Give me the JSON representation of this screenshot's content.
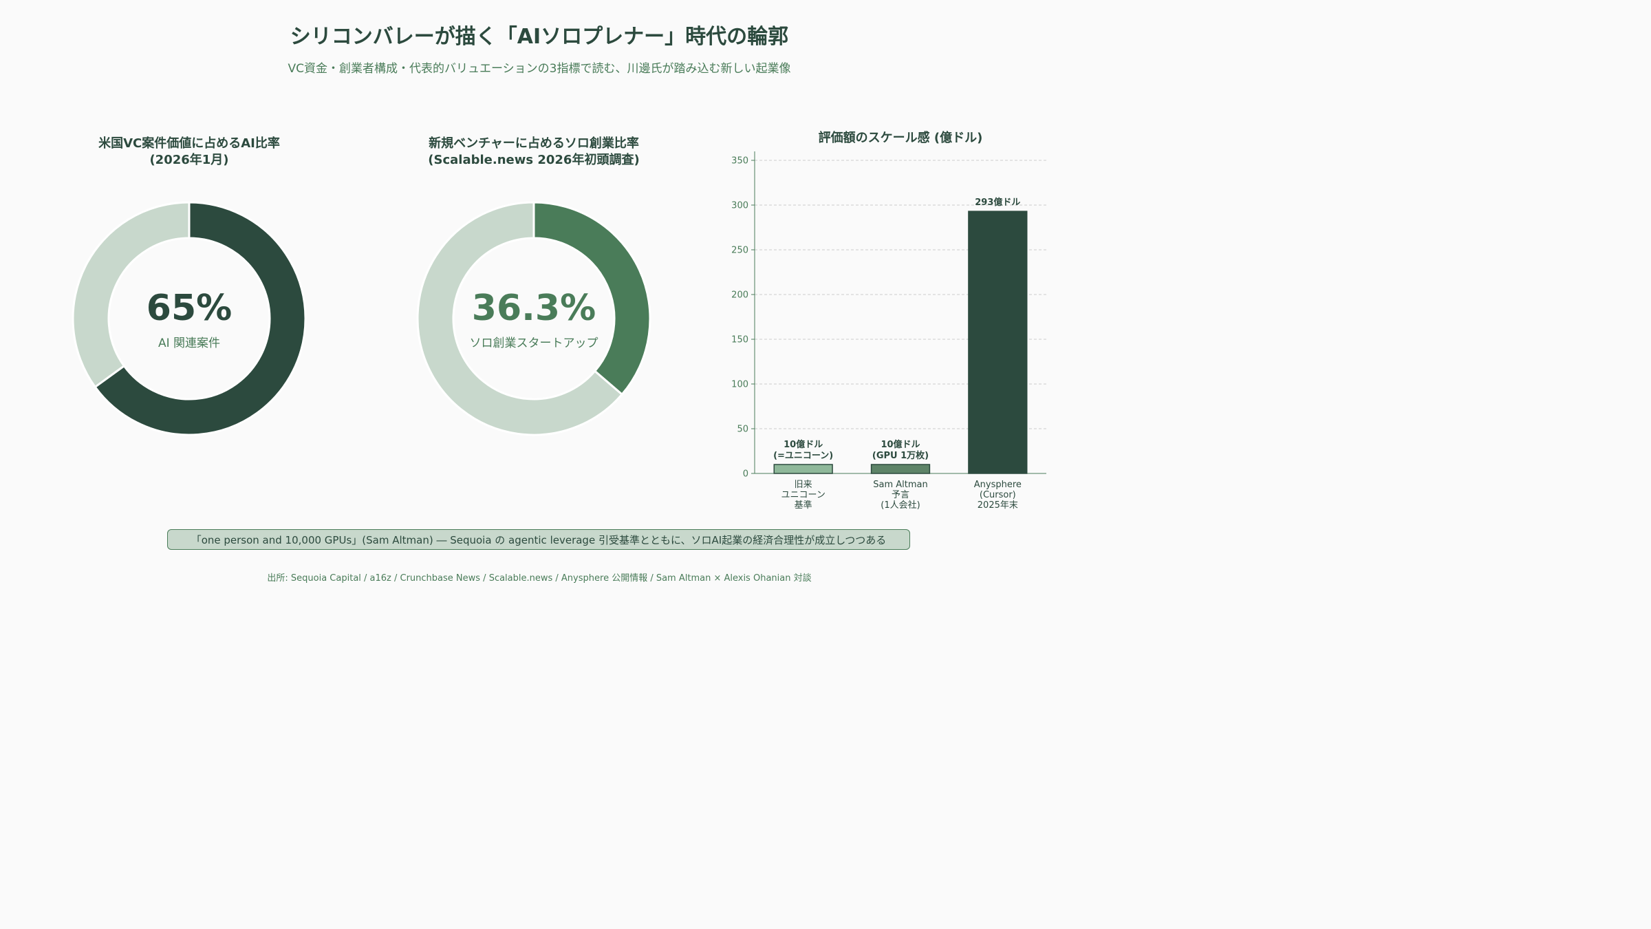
{
  "title": "シリコンバレーが描く「AIソロプレナー」時代の輪郭",
  "subtitle": "VC資金・創業者構成・代表的バリュエーションの3指標で読む、川邊氏が踏み込む新しい起業像",
  "colors": {
    "dark": "#2c4a3e",
    "mid": "#4a7c59",
    "light": "#c8d8cc",
    "bar1": "#8fb89a",
    "bar2": "#5e8468"
  },
  "chart_data": [
    {
      "type": "pie",
      "title_lines": [
        "米国VC案件価値に占めるAI比率",
        "(2026年1月)"
      ],
      "value": 65,
      "center_value": "65%",
      "center_label": "AI 関連案件",
      "slices": [
        {
          "value": 65,
          "color": "#2c4a3e"
        },
        {
          "value": 35,
          "color": "#c8d8cc"
        }
      ]
    },
    {
      "type": "pie",
      "title_lines": [
        "新規ベンチャーに占めるソロ創業比率",
        "(Scalable.news 2026年初頭調査)"
      ],
      "value": 36.3,
      "center_value": "36.3%",
      "center_label": "ソロ創業スタートアップ",
      "slices": [
        {
          "value": 36.3,
          "color": "#4a7c59"
        },
        {
          "value": 63.7,
          "color": "#c8d8cc"
        }
      ]
    },
    {
      "type": "bar",
      "title": "評価額のスケール感 (億ドル)",
      "categories": [
        [
          "旧来",
          "ユニコーン",
          "基準"
        ],
        [
          "Sam Altman",
          "予言",
          "(1人会社)"
        ],
        [
          "Anysphere",
          "(Cursor)",
          "2025年末"
        ]
      ],
      "values": [
        10,
        10,
        293
      ],
      "value_labels": [
        [
          "10億ドル",
          "(=ユニコーン)"
        ],
        [
          "10億ドル",
          "(GPU 1万枚)"
        ],
        [
          "293億ドル"
        ]
      ],
      "bar_colors": [
        "#8fb89a",
        "#5e8468",
        "#2c4a3e"
      ],
      "ylim": [
        0,
        360
      ],
      "yticks": [
        0,
        50,
        100,
        150,
        200,
        250,
        300,
        350
      ],
      "grid": true
    }
  ],
  "quote": "「one person and 10,000 GPUs」(Sam Altman) ― Sequoia の agentic leverage 引受基準とともに、ソロAI起業の経済合理性が成立しつつある",
  "source": "出所: Sequoia Capital / a16z / Crunchbase News / Scalable.news / Anysphere 公開情報 / Sam Altman × Alexis Ohanian 対談"
}
